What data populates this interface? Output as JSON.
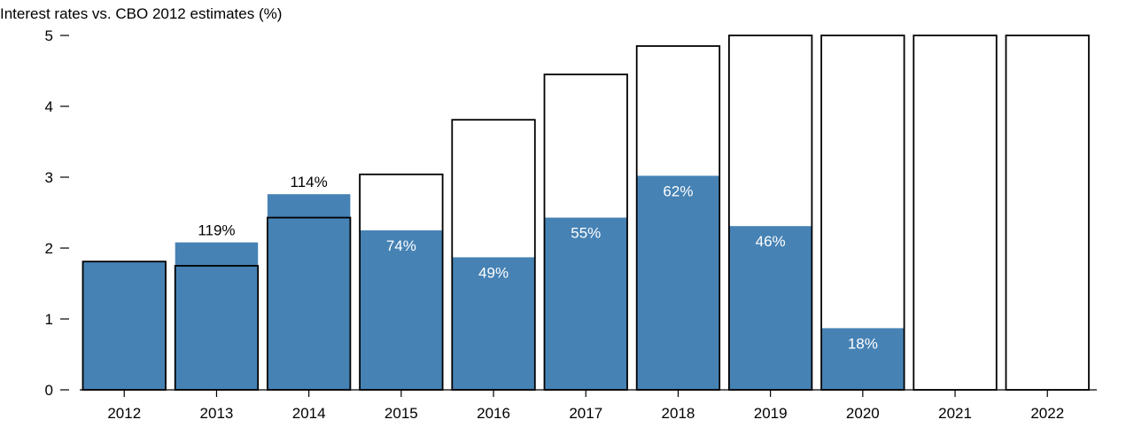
{
  "chart_data": {
    "type": "bar",
    "title": "Interest rates vs. CBO 2012 estimates (%)",
    "xlabel": "",
    "ylabel": "",
    "ylim": [
      0,
      5
    ],
    "yticks": [
      "0",
      "1",
      "2",
      "3",
      "4",
      "5"
    ],
    "categories": [
      "2012",
      "2013",
      "2014",
      "2015",
      "2016",
      "2017",
      "2018",
      "2019",
      "2020",
      "2021",
      "2022"
    ],
    "series": [
      {
        "role": "actual",
        "values": [
          1.8,
          2.08,
          2.76,
          2.25,
          1.87,
          2.43,
          3.02,
          2.31,
          0.87,
          null,
          null
        ],
        "color": "#4682b4"
      },
      {
        "role": "estimate",
        "values": [
          1.81,
          1.75,
          2.43,
          3.04,
          3.81,
          4.45,
          4.85,
          5.0,
          5.0,
          5.0,
          5.0
        ],
        "color": "#000000"
      }
    ],
    "ratio_labels": [
      "",
      "119%",
      "114%",
      "74%",
      "49%",
      "55%",
      "62%",
      "46%",
      "18%",
      "",
      ""
    ],
    "grid": false,
    "legend": "none"
  }
}
